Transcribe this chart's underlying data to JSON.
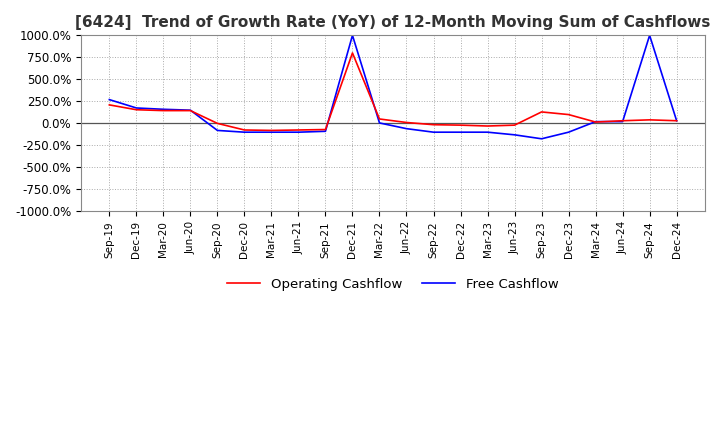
{
  "title": "[6424]  Trend of Growth Rate (YoY) of 12-Month Moving Sum of Cashflows",
  "title_fontsize": 11,
  "ylim": [
    -1000,
    1000
  ],
  "yticks": [
    -1000,
    -750,
    -500,
    -250,
    0,
    250,
    500,
    750,
    1000
  ],
  "ytick_labels": [
    "-1000.0%",
    "-750.0%",
    "-500.0%",
    "-250.0%",
    "0.0%",
    "250.0%",
    "500.0%",
    "750.0%",
    "1000.0%"
  ],
  "background_color": "#ffffff",
  "plot_bg_color": "#ffffff",
  "grid_color": "#aaaaaa",
  "operating_color": "#ff0000",
  "free_color": "#0000ff",
  "legend_labels": [
    "Operating Cashflow",
    "Free Cashflow"
  ],
  "x_labels": [
    "Sep-19",
    "Dec-19",
    "Mar-20",
    "Jun-20",
    "Sep-20",
    "Dec-20",
    "Mar-21",
    "Jun-21",
    "Sep-21",
    "Dec-21",
    "Mar-22",
    "Jun-22",
    "Sep-22",
    "Dec-22",
    "Mar-23",
    "Jun-23",
    "Sep-23",
    "Dec-23",
    "Mar-24",
    "Jun-24",
    "Sep-24",
    "Dec-24"
  ],
  "operating_cashflow": [
    210,
    155,
    145,
    145,
    0,
    -75,
    -80,
    -75,
    -70,
    800,
    50,
    10,
    -15,
    -20,
    -30,
    -20,
    130,
    100,
    15,
    30,
    40,
    30
  ],
  "free_cashflow": [
    270,
    175,
    160,
    150,
    -80,
    -100,
    -100,
    -100,
    -90,
    1000,
    5,
    -60,
    -100,
    -100,
    -100,
    -130,
    -175,
    -100,
    20,
    20,
    1000,
    30
  ]
}
